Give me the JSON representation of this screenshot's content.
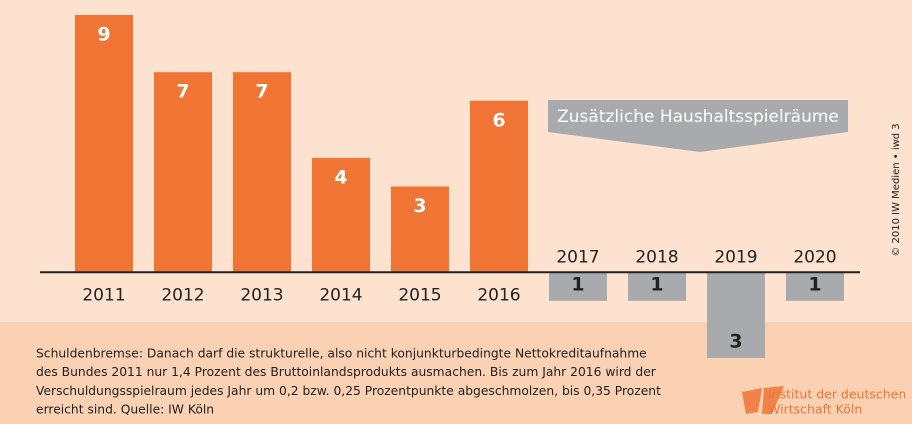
{
  "chart_data": {
    "type": "bar",
    "categories": [
      "2011",
      "2012",
      "2013",
      "2014",
      "2015",
      "2016",
      "2017",
      "2018",
      "2019",
      "2020"
    ],
    "values": [
      9,
      7,
      7,
      4,
      3,
      6,
      -1,
      -1,
      -3,
      -1
    ],
    "value_labels": [
      "9",
      "7",
      "7",
      "4",
      "3",
      "6",
      "1",
      "1",
      "3",
      "1"
    ],
    "color": "#f07535",
    "negative_color": "#a9aaae",
    "ylim": [
      -3,
      9
    ],
    "annotation": "Zusätzliche Haushaltsspielräume",
    "footnote": [
      "Schuldenbremse: Danach darf die strukturelle, also nicht konjunkturbedingte Nettokreditaufnahme",
      "des Bundes 2011 nur 1,4 Prozent des Bruttoinlandsprodukts ausmachen. Bis zum Jahr 2016 wird der",
      "Verschuldungsspielraum jedes Jahr um 0,2 bzw. 0,25 Prozentpunkte abgeschmolzen, bis 0,35 Prozent",
      "erreicht sind. Quelle: IW Köln"
    ],
    "credit": "© 2010 IW Medien • iwd 3",
    "logo": [
      "Institut der deutschen",
      "Wirtschaft Köln"
    ]
  }
}
